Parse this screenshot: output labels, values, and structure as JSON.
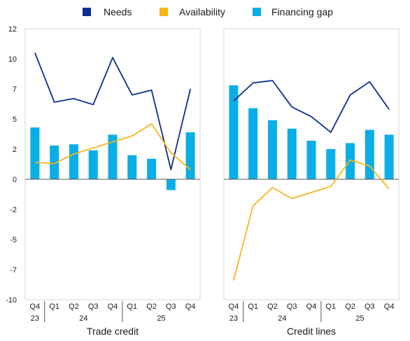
{
  "colors": {
    "needs": "#0b2f8f",
    "availability": "#f7b51a",
    "financing_gap": "#0aaee6",
    "panel_border": "#d4d4d4",
    "zero_line": "#555555",
    "axis_text": "#1a1a1a"
  },
  "legend": [
    {
      "key": "needs",
      "label": "Needs"
    },
    {
      "key": "availability",
      "label": "Availability"
    },
    {
      "key": "financing_gap",
      "label": "Financing gap"
    }
  ],
  "y_axis": {
    "tick_labels": [
      "12",
      "10",
      "7",
      "5",
      "2",
      "0",
      "-2",
      "-5",
      "-7",
      "-10"
    ]
  },
  "quarter_labels": [
    "Q4",
    "Q1",
    "Q2",
    "Q3",
    "Q4",
    "Q1",
    "Q2",
    "Q3",
    "Q4"
  ],
  "year_groups": [
    {
      "label": "23",
      "start": 0,
      "end": 0
    },
    {
      "label": "24",
      "start": 1,
      "end": 4
    },
    {
      "label": "25",
      "start": 5,
      "end": 8
    }
  ],
  "chart_data": [
    {
      "type": "bar",
      "title": "Trade credit",
      "ylim": [
        -10,
        12.5
      ],
      "categories": [
        "Q4 23",
        "Q1 24",
        "Q2 24",
        "Q3 24",
        "Q4 24",
        "Q1 25",
        "Q2 25",
        "Q3 25",
        "Q4 25"
      ],
      "series": [
        {
          "name": "Financing gap",
          "kind": "bar",
          "values": [
            4.3,
            2.8,
            2.9,
            2.4,
            3.7,
            2.0,
            1.7,
            -0.9,
            3.9
          ]
        },
        {
          "name": "Needs",
          "kind": "line",
          "values": [
            10.5,
            6.4,
            6.7,
            6.2,
            10.1,
            7.0,
            7.4,
            0.8,
            7.5
          ]
        },
        {
          "name": "Availability",
          "kind": "line",
          "values": [
            1.4,
            1.3,
            2.1,
            2.6,
            3.1,
            3.6,
            4.6,
            2.2,
            0.8
          ]
        }
      ]
    },
    {
      "type": "bar",
      "title": "Credit lines",
      "ylim": [
        -10,
        12.5
      ],
      "categories": [
        "Q4 23",
        "Q1 24",
        "Q2 24",
        "Q3 24",
        "Q4 24",
        "Q1 25",
        "Q2 25",
        "Q3 25",
        "Q4 25"
      ],
      "series": [
        {
          "name": "Financing gap",
          "kind": "bar",
          "values": [
            7.8,
            5.9,
            4.9,
            4.2,
            3.2,
            2.5,
            3.0,
            4.1,
            3.7
          ]
        },
        {
          "name": "Needs",
          "kind": "line",
          "values": [
            6.5,
            8.0,
            8.2,
            6.0,
            5.2,
            3.9,
            7.0,
            8.1,
            5.8
          ]
        },
        {
          "name": "Availability",
          "kind": "line",
          "values": [
            -8.4,
            -2.2,
            -0.7,
            -1.6,
            -1.1,
            -0.6,
            1.6,
            1.1,
            -0.8
          ]
        }
      ]
    }
  ]
}
